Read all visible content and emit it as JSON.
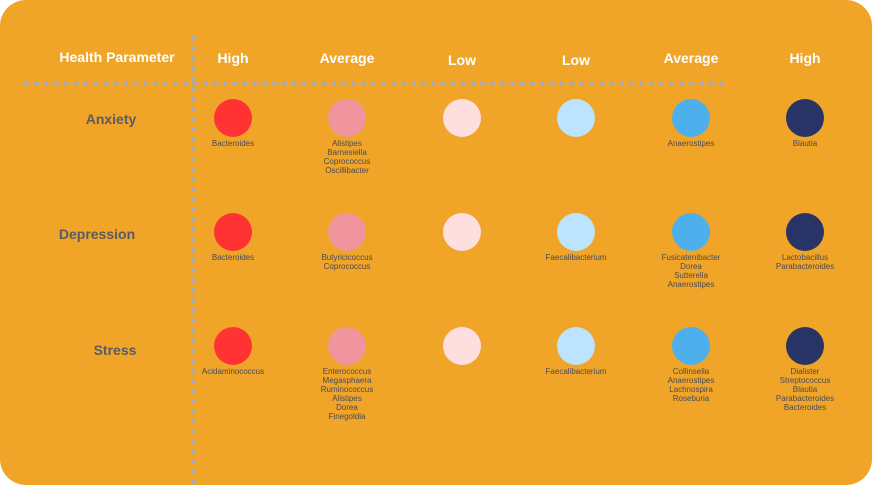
{
  "header": {
    "param_label": "Health Parameter",
    "columns": [
      "High",
      "Average",
      "Low",
      "Low",
      "Average",
      "High"
    ]
  },
  "colors": {
    "background": "#F0A528",
    "grid": "#A9A9B2",
    "levels": [
      "#FF3334",
      "#F0959D",
      "#FEDEDF",
      "#BDE4FF",
      "#4DAFEC",
      "#283465"
    ]
  },
  "rows": [
    {
      "label": "Anxiety",
      "cells": [
        [
          "Bacteroides"
        ],
        [
          "Alistipes",
          "Barnesiella",
          "Coprococcus",
          "Oscillibacter"
        ],
        [],
        [],
        [
          "Anaerostipes"
        ],
        [
          "Blautia"
        ]
      ]
    },
    {
      "label": "Depression",
      "cells": [
        [
          "Bacteroides"
        ],
        [
          "Butyricicoccus",
          "Coprococcus"
        ],
        [],
        [
          "Faecalibacterium"
        ],
        [
          "Fusicatenibacter",
          "Dorea",
          "Sutterella",
          "Anaerostipes"
        ],
        [
          "Lactobacillus",
          "Parabacteroides"
        ]
      ]
    },
    {
      "label": "Stress",
      "cells": [
        [
          "Acidaminococcus"
        ],
        [
          "Enterococcus",
          "Megasphaera",
          "Ruminococcus",
          "Alistipes",
          "Dorea",
          "Finegoldia"
        ],
        [],
        [
          "Faecalibacterium"
        ],
        [
          "Collinsella",
          "Anaerostipes",
          "Lachnospira",
          "Roseburia"
        ],
        [
          "Dialister",
          "Streptococcus",
          "Blautia",
          "Parabacteroides",
          "Bacteroides"
        ]
      ]
    }
  ]
}
